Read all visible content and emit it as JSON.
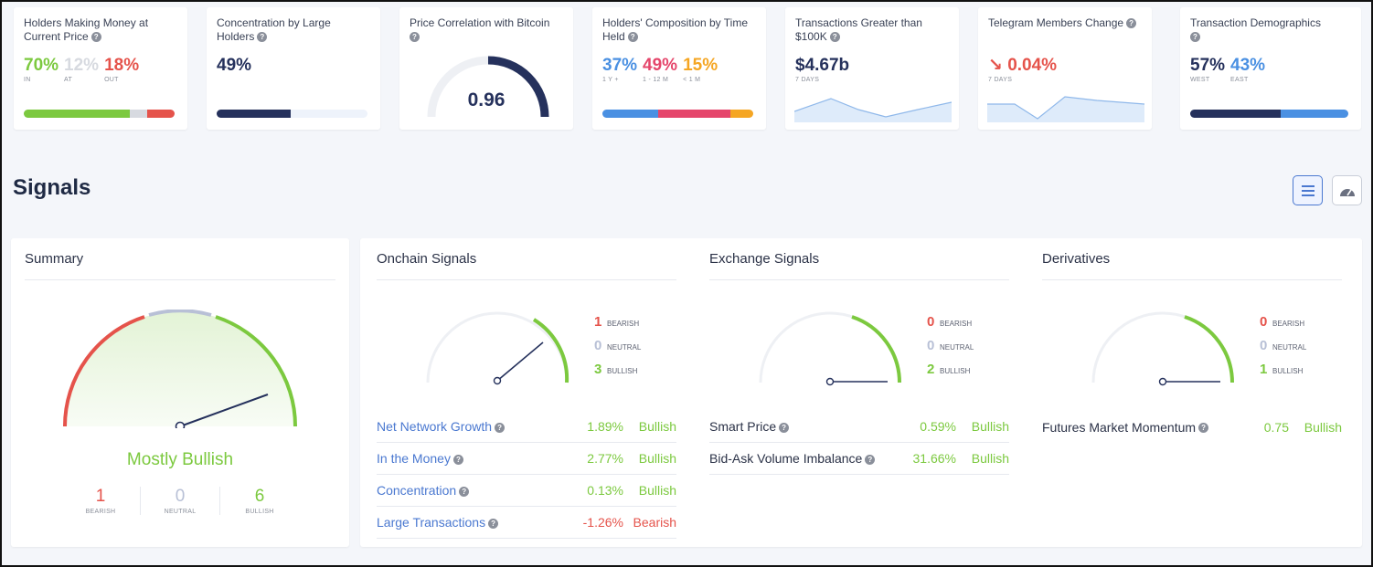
{
  "metrics": {
    "holders_money": {
      "title": "Holders Making Money at Current Price",
      "in": "70%",
      "at": "12%",
      "out": "18%",
      "in_label": "IN",
      "at_label": "AT",
      "out_label": "OUT",
      "in_frac": 0.7,
      "at_frac": 0.12,
      "out_frac": 0.18
    },
    "concentration": {
      "title": "Concentration by Large Holders",
      "value": "49%",
      "fill_frac": 0.49
    },
    "correlation": {
      "title": "Price Correlation with Bitcoin",
      "value": "0.96",
      "gauge_frac": 0.96
    },
    "composition": {
      "title": "Holders' Composition by Time Held",
      "v1": "37%",
      "v2": "49%",
      "v3": "15%",
      "l1": "1 Y +",
      "l2": "1 - 12 M",
      "l3": "< 1 M",
      "f1": 0.37,
      "f2": 0.49,
      "f3": 0.15
    },
    "transactions": {
      "title": "Transactions Greater than $100K",
      "value": "$4.67b",
      "sub": "7 DAYS"
    },
    "telegram": {
      "title": "Telegram Members Change",
      "value": "0.04%",
      "arrow": "↘",
      "sub": "7 DAYS"
    },
    "demographics": {
      "title": "Transaction Demographics",
      "west": "57%",
      "east": "43%",
      "west_label": "WEST",
      "east_label": "EAST",
      "west_frac": 0.57,
      "east_frac": 0.43
    }
  },
  "signals": {
    "title": "Signals",
    "summary": {
      "title": "Summary",
      "verdict": "Mostly Bullish",
      "bearish": "1",
      "neutral": "0",
      "bullish": "6",
      "bearish_label": "BEARISH",
      "neutral_label": "NEUTRAL",
      "bullish_label": "BULLISH"
    },
    "onchain": {
      "title": "Onchain Signals",
      "bearish": "1",
      "neutral": "0",
      "bullish": "3",
      "rows": [
        {
          "name": "Net Network Growth",
          "value": "1.89%",
          "status": "Bullish"
        },
        {
          "name": "In the Money",
          "value": "2.77%",
          "status": "Bullish"
        },
        {
          "name": "Concentration",
          "value": "0.13%",
          "status": "Bullish"
        },
        {
          "name": "Large Transactions",
          "value": "-1.26%",
          "status": "Bearish"
        }
      ]
    },
    "exchange": {
      "title": "Exchange Signals",
      "bearish": "0",
      "neutral": "0",
      "bullish": "2",
      "rows": [
        {
          "name": "Smart Price",
          "value": "0.59%",
          "status": "Bullish"
        },
        {
          "name": "Bid-Ask Volume Imbalance",
          "value": "31.66%",
          "status": "Bullish"
        }
      ]
    },
    "derivatives": {
      "title": "Derivatives",
      "bearish": "0",
      "neutral": "0",
      "bullish": "1",
      "rows": [
        {
          "name": "Futures Market Momentum",
          "value": "0.75",
          "status": "Bullish"
        }
      ]
    },
    "count_labels": {
      "bearish": "BEARISH",
      "neutral": "NEUTRAL",
      "bullish": "BULLISH"
    }
  },
  "colors": {
    "bullish": "#7cc93f",
    "bearish": "#e5534b",
    "neutral": "#b8c0d6",
    "navy": "#25315c",
    "link": "#4a78d0"
  },
  "icons": {
    "help": "question-circle-icon",
    "list_view": "list-icon",
    "gauge_view": "speedometer-icon",
    "down_arrow": "arrow-down-right-icon"
  }
}
